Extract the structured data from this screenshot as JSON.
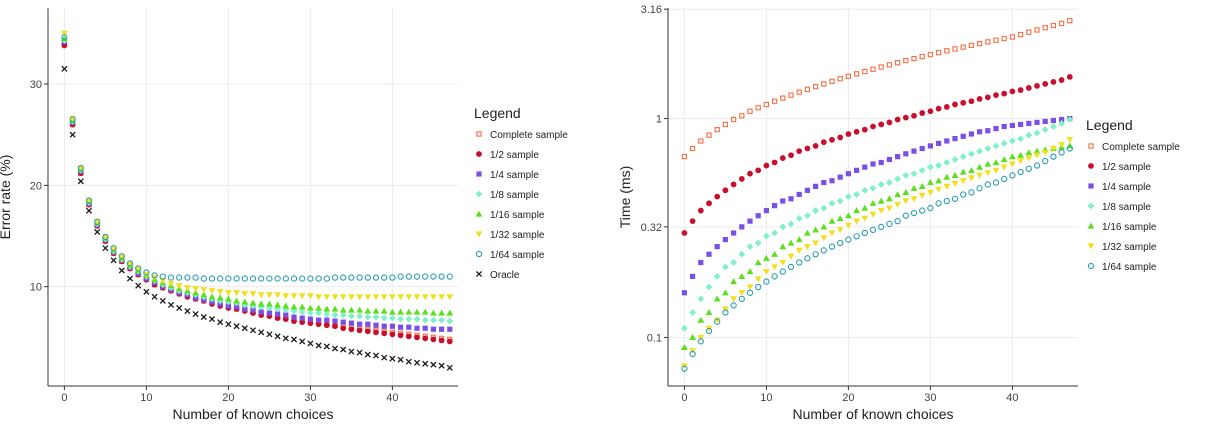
{
  "series_styles": [
    {
      "name": "Complete sample",
      "color": "#f46d43",
      "shape": "open-square"
    },
    {
      "name": "1/2 sample",
      "color": "#c8102e",
      "shape": "circle"
    },
    {
      "name": "1/4 sample",
      "color": "#7b4fe6",
      "shape": "square"
    },
    {
      "name": "1/8 sample",
      "color": "#7ff0c8",
      "shape": "diamond"
    },
    {
      "name": "1/16 sample",
      "color": "#5ce01e",
      "shape": "triangle"
    },
    {
      "name": "1/32 sample",
      "color": "#f0e020",
      "shape": "triangle-down"
    },
    {
      "name": "1/64 sample",
      "color": "#2a9db5",
      "shape": "open-circle"
    },
    {
      "name": "Oracle",
      "color": "#1a1a1a",
      "shape": "cross"
    }
  ],
  "chart_data": [
    {
      "type": "scatter",
      "xlabel": "Number of known choices",
      "ylabel": "Error rate (%)",
      "xlim": [
        -2,
        48
      ],
      "ylim": [
        0.2,
        37.5
      ],
      "xticks": [
        "0",
        "10",
        "20",
        "30",
        "40"
      ],
      "yticks": [
        "10",
        "20",
        "30"
      ],
      "legend_title": "Legend",
      "legend_position": "right",
      "grid": true,
      "x": [
        0,
        1,
        2,
        3,
        4,
        5,
        6,
        7,
        8,
        9,
        10,
        11,
        12,
        13,
        14,
        15,
        16,
        17,
        18,
        19,
        20,
        21,
        22,
        23,
        24,
        25,
        26,
        27,
        28,
        29,
        30,
        31,
        32,
        33,
        34,
        35,
        36,
        37,
        38,
        39,
        40,
        41,
        42,
        43,
        44,
        45,
        46,
        47
      ],
      "series": [
        {
          "name": "Complete sample",
          "values": [
            34.0,
            26.0,
            21.2,
            18.1,
            16.0,
            14.5,
            13.3,
            12.5,
            11.8,
            11.2,
            10.7,
            10.2,
            9.9,
            9.6,
            9.3,
            9.1,
            8.8,
            8.6,
            8.4,
            8.2,
            8.0,
            7.8,
            7.7,
            7.5,
            7.3,
            7.2,
            7.0,
            6.9,
            6.8,
            6.6,
            6.5,
            6.4,
            6.3,
            6.2,
            6.1,
            6.0,
            5.9,
            5.8,
            5.7,
            5.6,
            5.5,
            5.4,
            5.3,
            5.2,
            5.1,
            5.0,
            4.9,
            4.8
          ]
        },
        {
          "name": "1/2 sample",
          "values": [
            33.8,
            26.0,
            21.2,
            18.1,
            16.0,
            14.5,
            13.3,
            12.5,
            11.8,
            11.2,
            10.7,
            10.2,
            9.9,
            9.6,
            9.3,
            9.0,
            8.8,
            8.6,
            8.3,
            8.1,
            7.9,
            7.8,
            7.6,
            7.4,
            7.2,
            7.1,
            6.9,
            6.8,
            6.6,
            6.5,
            6.4,
            6.3,
            6.2,
            6.1,
            5.9,
            5.8,
            5.7,
            5.6,
            5.5,
            5.4,
            5.3,
            5.2,
            5.1,
            5.0,
            4.9,
            4.8,
            4.7,
            4.6
          ]
        },
        {
          "name": "1/4 sample",
          "values": [
            34.2,
            26.2,
            21.4,
            18.2,
            16.1,
            14.6,
            13.4,
            12.6,
            11.9,
            11.3,
            10.8,
            10.4,
            10.0,
            9.7,
            9.4,
            9.2,
            8.9,
            8.7,
            8.5,
            8.3,
            8.1,
            8.0,
            7.8,
            7.7,
            7.5,
            7.4,
            7.3,
            7.2,
            7.0,
            6.9,
            6.8,
            6.7,
            6.7,
            6.6,
            6.5,
            6.4,
            6.3,
            6.3,
            6.2,
            6.1,
            6.1,
            6.0,
            6.0,
            5.9,
            5.9,
            5.8,
            5.8,
            5.8
          ]
        },
        {
          "name": "1/8 sample",
          "values": [
            34.3,
            26.3,
            21.5,
            18.3,
            16.2,
            14.7,
            13.5,
            12.7,
            12.0,
            11.5,
            11.0,
            10.6,
            10.2,
            9.9,
            9.6,
            9.4,
            9.2,
            9.0,
            8.8,
            8.6,
            8.5,
            8.4,
            8.2,
            8.1,
            8.0,
            7.9,
            7.8,
            7.7,
            7.6,
            7.5,
            7.4,
            7.4,
            7.3,
            7.2,
            7.2,
            7.1,
            7.1,
            7.0,
            7.0,
            6.9,
            6.9,
            6.8,
            6.8,
            6.8,
            6.7,
            6.7,
            6.7,
            6.6
          ]
        },
        {
          "name": "1/16 sample",
          "values": [
            34.5,
            26.4,
            21.6,
            18.4,
            16.3,
            14.8,
            13.6,
            12.8,
            12.1,
            11.6,
            11.1,
            10.7,
            10.4,
            10.1,
            9.8,
            9.6,
            9.4,
            9.2,
            9.0,
            8.9,
            8.8,
            8.6,
            8.5,
            8.4,
            8.3,
            8.3,
            8.2,
            8.1,
            8.0,
            8.0,
            7.9,
            7.9,
            7.8,
            7.8,
            7.7,
            7.7,
            7.7,
            7.6,
            7.6,
            7.6,
            7.5,
            7.5,
            7.5,
            7.5,
            7.5,
            7.4,
            7.4,
            7.4
          ]
        },
        {
          "name": "1/32 sample",
          "values": [
            35.0,
            26.6,
            21.7,
            18.5,
            16.4,
            14.9,
            13.7,
            12.9,
            12.2,
            11.7,
            11.2,
            10.9,
            10.6,
            10.3,
            10.1,
            9.9,
            9.8,
            9.7,
            9.6,
            9.5,
            9.4,
            9.4,
            9.3,
            9.3,
            9.2,
            9.2,
            9.2,
            9.1,
            9.1,
            9.1,
            9.1,
            9.0,
            9.0,
            9.0,
            9.0,
            9.0,
            9.0,
            9.0,
            9.0,
            9.0,
            9.0,
            9.0,
            9.0,
            9.0,
            9.0,
            9.0,
            9.0,
            9.0
          ]
        },
        {
          "name": "1/64 sample",
          "values": [
            34.6,
            26.5,
            21.7,
            18.5,
            16.4,
            14.9,
            13.8,
            13.0,
            12.3,
            11.8,
            11.4,
            11.1,
            11.0,
            10.9,
            10.9,
            10.9,
            10.9,
            10.8,
            10.8,
            10.8,
            10.8,
            10.8,
            10.8,
            10.8,
            10.8,
            10.8,
            10.8,
            10.8,
            10.8,
            10.8,
            10.8,
            10.8,
            10.8,
            10.9,
            10.9,
            10.9,
            10.9,
            10.9,
            10.9,
            10.9,
            10.9,
            11.0,
            11.0,
            11.0,
            11.0,
            11.0,
            11.0,
            11.0
          ]
        },
        {
          "name": "Oracle",
          "values": [
            31.5,
            25.0,
            20.4,
            17.5,
            15.4,
            13.8,
            12.6,
            11.6,
            10.8,
            10.1,
            9.5,
            9.0,
            8.6,
            8.2,
            7.9,
            7.6,
            7.3,
            7.0,
            6.8,
            6.5,
            6.3,
            6.1,
            5.9,
            5.7,
            5.5,
            5.3,
            5.1,
            4.9,
            4.8,
            4.6,
            4.4,
            4.2,
            4.1,
            3.9,
            3.8,
            3.6,
            3.5,
            3.3,
            3.2,
            3.0,
            2.9,
            2.8,
            2.6,
            2.5,
            2.4,
            2.3,
            2.2,
            2.0
          ]
        }
      ]
    },
    {
      "type": "scatter",
      "xlabel": "Number of known choices",
      "ylabel": "Time (ms)",
      "yscale": "log",
      "xlim": [
        -2,
        48
      ],
      "ylim": [
        0.06,
        3.2
      ],
      "xticks": [
        "0",
        "10",
        "20",
        "30",
        "40"
      ],
      "yticks": [
        "0.1",
        "0.32",
        "1",
        "3.16"
      ],
      "legend_title": "Legend",
      "legend_position": "right",
      "grid": true,
      "x": [
        0,
        1,
        2,
        3,
        4,
        5,
        6,
        7,
        8,
        9,
        10,
        11,
        12,
        13,
        14,
        15,
        16,
        17,
        18,
        19,
        20,
        21,
        22,
        23,
        24,
        25,
        26,
        27,
        28,
        29,
        30,
        31,
        32,
        33,
        34,
        35,
        36,
        37,
        38,
        39,
        40,
        41,
        42,
        43,
        44,
        45,
        46,
        47
      ],
      "series": [
        {
          "name": "Complete sample",
          "values": [
            0.67,
            0.73,
            0.79,
            0.84,
            0.89,
            0.94,
            0.99,
            1.03,
            1.08,
            1.12,
            1.16,
            1.2,
            1.24,
            1.28,
            1.32,
            1.36,
            1.4,
            1.44,
            1.48,
            1.52,
            1.56,
            1.6,
            1.64,
            1.68,
            1.72,
            1.76,
            1.8,
            1.84,
            1.88,
            1.92,
            1.96,
            2.0,
            2.04,
            2.08,
            2.12,
            2.16,
            2.2,
            2.24,
            2.28,
            2.32,
            2.36,
            2.42,
            2.48,
            2.54,
            2.6,
            2.66,
            2.72,
            2.8
          ]
        },
        {
          "name": "1/2 sample",
          "values": [
            0.3,
            0.34,
            0.38,
            0.41,
            0.44,
            0.47,
            0.5,
            0.53,
            0.56,
            0.58,
            0.61,
            0.63,
            0.66,
            0.68,
            0.71,
            0.73,
            0.75,
            0.78,
            0.8,
            0.82,
            0.85,
            0.87,
            0.89,
            0.92,
            0.94,
            0.96,
            0.99,
            1.01,
            1.03,
            1.06,
            1.08,
            1.11,
            1.13,
            1.16,
            1.18,
            1.2,
            1.23,
            1.25,
            1.28,
            1.3,
            1.33,
            1.35,
            1.38,
            1.41,
            1.44,
            1.47,
            1.5,
            1.55
          ]
        },
        {
          "name": "1/4 sample",
          "values": [
            0.16,
            0.19,
            0.22,
            0.24,
            0.26,
            0.28,
            0.3,
            0.32,
            0.34,
            0.36,
            0.38,
            0.4,
            0.42,
            0.43,
            0.45,
            0.47,
            0.49,
            0.51,
            0.52,
            0.54,
            0.56,
            0.58,
            0.6,
            0.62,
            0.63,
            0.65,
            0.67,
            0.69,
            0.71,
            0.73,
            0.75,
            0.77,
            0.79,
            0.81,
            0.83,
            0.85,
            0.87,
            0.88,
            0.9,
            0.92,
            0.93,
            0.94,
            0.95,
            0.96,
            0.97,
            0.98,
            0.99,
            1.0
          ]
        },
        {
          "name": "1/8 sample",
          "values": [
            0.11,
            0.13,
            0.15,
            0.17,
            0.19,
            0.21,
            0.22,
            0.24,
            0.26,
            0.27,
            0.29,
            0.3,
            0.32,
            0.33,
            0.35,
            0.36,
            0.38,
            0.39,
            0.41,
            0.42,
            0.44,
            0.45,
            0.47,
            0.48,
            0.5,
            0.51,
            0.53,
            0.55,
            0.56,
            0.58,
            0.6,
            0.61,
            0.63,
            0.65,
            0.67,
            0.69,
            0.71,
            0.73,
            0.75,
            0.77,
            0.79,
            0.81,
            0.84,
            0.86,
            0.89,
            0.92,
            0.95,
            0.99
          ]
        },
        {
          "name": "1/16 sample",
          "values": [
            0.09,
            0.1,
            0.12,
            0.13,
            0.15,
            0.16,
            0.18,
            0.19,
            0.2,
            0.22,
            0.23,
            0.24,
            0.26,
            0.27,
            0.28,
            0.3,
            0.31,
            0.32,
            0.34,
            0.35,
            0.36,
            0.38,
            0.39,
            0.41,
            0.42,
            0.43,
            0.45,
            0.46,
            0.48,
            0.49,
            0.51,
            0.52,
            0.54,
            0.55,
            0.57,
            0.58,
            0.6,
            0.62,
            0.63,
            0.65,
            0.67,
            0.68,
            0.7,
            0.71,
            0.72,
            0.73,
            0.74,
            0.75
          ]
        },
        {
          "name": "1/32 sample",
          "values": [
            0.074,
            0.087,
            0.1,
            0.11,
            0.12,
            0.135,
            0.15,
            0.16,
            0.17,
            0.185,
            0.2,
            0.21,
            0.22,
            0.235,
            0.25,
            0.26,
            0.27,
            0.285,
            0.3,
            0.31,
            0.325,
            0.34,
            0.35,
            0.365,
            0.38,
            0.39,
            0.405,
            0.42,
            0.43,
            0.445,
            0.46,
            0.475,
            0.49,
            0.505,
            0.52,
            0.535,
            0.55,
            0.565,
            0.58,
            0.6,
            0.62,
            0.64,
            0.66,
            0.68,
            0.7,
            0.73,
            0.76,
            0.8
          ]
        },
        {
          "name": "1/64 sample",
          "values": [
            0.072,
            0.084,
            0.096,
            0.107,
            0.118,
            0.13,
            0.14,
            0.15,
            0.16,
            0.17,
            0.18,
            0.19,
            0.2,
            0.21,
            0.22,
            0.23,
            0.24,
            0.25,
            0.26,
            0.27,
            0.28,
            0.29,
            0.3,
            0.31,
            0.32,
            0.33,
            0.34,
            0.36,
            0.37,
            0.38,
            0.39,
            0.41,
            0.42,
            0.43,
            0.45,
            0.46,
            0.48,
            0.5,
            0.51,
            0.53,
            0.55,
            0.57,
            0.59,
            0.61,
            0.64,
            0.67,
            0.7,
            0.73
          ]
        }
      ]
    }
  ]
}
